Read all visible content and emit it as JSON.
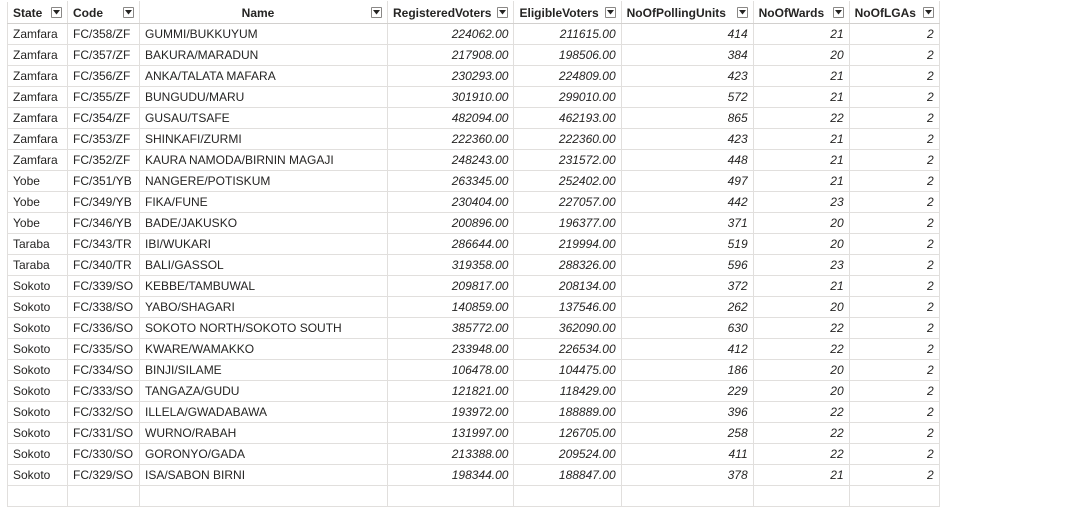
{
  "columns": [
    {
      "key": "State",
      "label": "State",
      "align": "left",
      "type": "text"
    },
    {
      "key": "Code",
      "label": "Code",
      "align": "left",
      "type": "text"
    },
    {
      "key": "Name",
      "label": "Name",
      "align": "center",
      "type": "text"
    },
    {
      "key": "RegisteredVoters",
      "label": "RegisteredVoters",
      "align": "right",
      "type": "num"
    },
    {
      "key": "EligibleVoters",
      "label": "EligibleVoters",
      "align": "right",
      "type": "num"
    },
    {
      "key": "NoOfPollingUnits",
      "label": "NoOfPollingUnits",
      "align": "left",
      "type": "num"
    },
    {
      "key": "NoOfWards",
      "label": "NoOfWards",
      "align": "left",
      "type": "num"
    },
    {
      "key": "NoOfLGAs",
      "label": "NoOfLGAs",
      "align": "left",
      "type": "num"
    }
  ],
  "rows": [
    [
      "Zamfara",
      "FC/358/ZF",
      "GUMMI/BUKKUYUM",
      "224062.00",
      "211615.00",
      "414",
      "21",
      "2"
    ],
    [
      "Zamfara",
      "FC/357/ZF",
      "BAKURA/MARADUN",
      "217908.00",
      "198506.00",
      "384",
      "20",
      "2"
    ],
    [
      "Zamfara",
      "FC/356/ZF",
      "ANKA/TALATA MAFARA",
      "230293.00",
      "224809.00",
      "423",
      "21",
      "2"
    ],
    [
      "Zamfara",
      "FC/355/ZF",
      "BUNGUDU/MARU",
      "301910.00",
      "299010.00",
      "572",
      "21",
      "2"
    ],
    [
      "Zamfara",
      "FC/354/ZF",
      "GUSAU/TSAFE",
      "482094.00",
      "462193.00",
      "865",
      "22",
      "2"
    ],
    [
      "Zamfara",
      "FC/353/ZF",
      "SHINKAFI/ZURMI",
      "222360.00",
      "222360.00",
      "423",
      "21",
      "2"
    ],
    [
      "Zamfara",
      "FC/352/ZF",
      "KAURA NAMODA/BIRNIN MAGAJI",
      "248243.00",
      "231572.00",
      "448",
      "21",
      "2"
    ],
    [
      "Yobe",
      "FC/351/YB",
      "NANGERE/POTISKUM",
      "263345.00",
      "252402.00",
      "497",
      "21",
      "2"
    ],
    [
      "Yobe",
      "FC/349/YB",
      "FIKA/FUNE",
      "230404.00",
      "227057.00",
      "442",
      "23",
      "2"
    ],
    [
      "Yobe",
      "FC/346/YB",
      "BADE/JAKUSKO",
      "200896.00",
      "196377.00",
      "371",
      "20",
      "2"
    ],
    [
      "Taraba",
      "FC/343/TR",
      "IBI/WUKARI",
      "286644.00",
      "219994.00",
      "519",
      "20",
      "2"
    ],
    [
      "Taraba",
      "FC/340/TR",
      "BALI/GASSOL",
      "319358.00",
      "288326.00",
      "596",
      "23",
      "2"
    ],
    [
      "Sokoto",
      "FC/339/SO",
      "KEBBE/TAMBUWAL",
      "209817.00",
      "208134.00",
      "372",
      "21",
      "2"
    ],
    [
      "Sokoto",
      "FC/338/SO",
      "YABO/SHAGARI",
      "140859.00",
      "137546.00",
      "262",
      "20",
      "2"
    ],
    [
      "Sokoto",
      "FC/336/SO",
      "SOKOTO NORTH/SOKOTO SOUTH",
      "385772.00",
      "362090.00",
      "630",
      "22",
      "2"
    ],
    [
      "Sokoto",
      "FC/335/SO",
      "KWARE/WAMAKKO",
      "233948.00",
      "226534.00",
      "412",
      "22",
      "2"
    ],
    [
      "Sokoto",
      "FC/334/SO",
      "BINJI/SILAME",
      "106478.00",
      "104475.00",
      "186",
      "20",
      "2"
    ],
    [
      "Sokoto",
      "FC/333/SO",
      "TANGAZA/GUDU",
      "121821.00",
      "118429.00",
      "229",
      "20",
      "2"
    ],
    [
      "Sokoto",
      "FC/332/SO",
      "ILLELA/GWADABAWA",
      "193972.00",
      "188889.00",
      "396",
      "22",
      "2"
    ],
    [
      "Sokoto",
      "FC/331/SO",
      "WURNO/RABAH",
      "131997.00",
      "126705.00",
      "258",
      "22",
      "2"
    ],
    [
      "Sokoto",
      "FC/330/SO",
      "GORONYO/GADA",
      "213388.00",
      "209524.00",
      "411",
      "22",
      "2"
    ],
    [
      "Sokoto",
      "FC/329/SO",
      "ISA/SABON BIRNI",
      "198344.00",
      "188847.00",
      "378",
      "21",
      "2"
    ]
  ],
  "icons": {
    "filter_dropdown": "chevron-down-icon"
  },
  "colors": {
    "grid_line": "#e1dfdd",
    "header_bg": "#ffffff",
    "text": "#252423"
  }
}
